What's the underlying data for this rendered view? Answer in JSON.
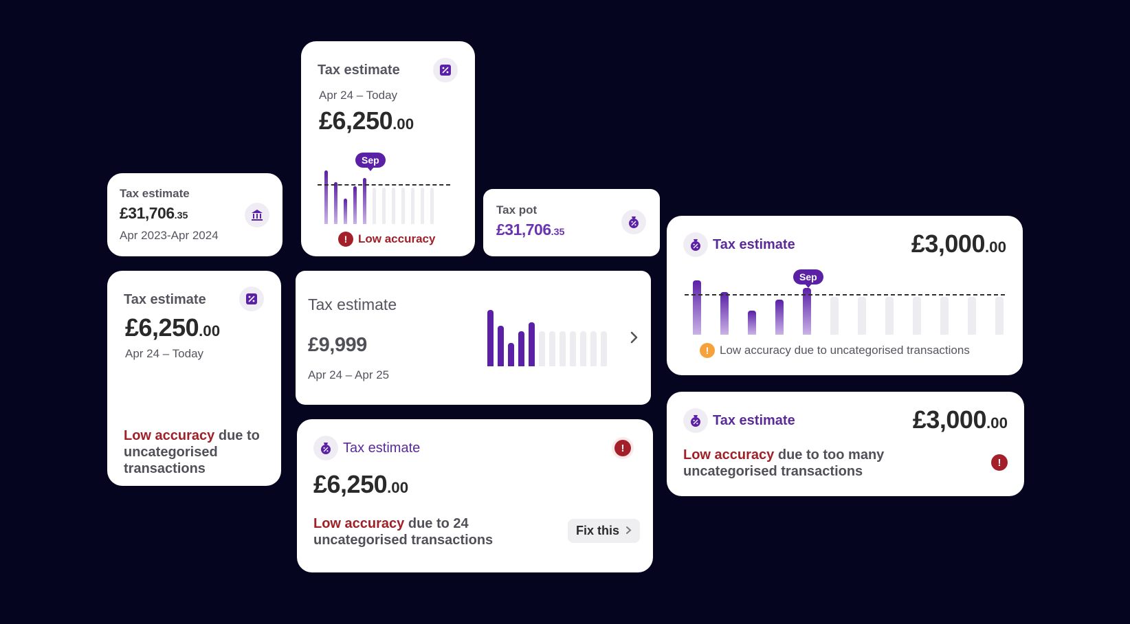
{
  "c1": {
    "title": "Tax estimate",
    "amount_main": "£31,706",
    "amount_dec": ".35",
    "period": "Apr 2023-Apr 2024",
    "icon": "bank-icon"
  },
  "c2": {
    "title": "Tax estimate",
    "period": "Apr 24 – Today",
    "amount_main": "£6,250",
    "amount_dec": ".00",
    "tooltip": "Sep",
    "warning": "Low accuracy",
    "warning_icon": "!",
    "chart_data": {
      "type": "bar",
      "values": [
        1,
        0.78,
        0.47,
        0.7,
        0.86,
        0.68,
        0.68,
        0.68,
        0.68,
        0.68,
        0.68,
        0.68
      ],
      "active_count": 5,
      "highlight": "Sep"
    }
  },
  "c3": {
    "title": "Tax pot",
    "amount_main": "£31,706",
    "amount_dec": ".35",
    "icon": "tax-pot-icon"
  },
  "c4": {
    "title": "Tax estimate",
    "amount_main": "£6,250",
    "amount_dec": ".00",
    "period": "Apr 24 – Today",
    "warn_red": "Low accuracy",
    "warn_rest": " due to uncategorised transactions"
  },
  "c5": {
    "title": "Tax estimate",
    "amount": "£9,999",
    "period": "Apr 24 – Apr 25",
    "chart_data": {
      "type": "bar",
      "values": [
        1,
        0.72,
        0.42,
        0.62,
        0.78,
        0.62,
        0.62,
        0.62,
        0.62,
        0.62,
        0.62,
        0.62
      ],
      "active_count": 5
    }
  },
  "c6": {
    "title": "Tax estimate",
    "amount_main": "£3,000",
    "amount_dec": ".00",
    "tooltip": "Sep",
    "warning": "Low accuracy due to uncategorised transactions",
    "warning_icon": "!",
    "chart_data": {
      "type": "bar",
      "values": [
        1,
        0.78,
        0.44,
        0.65,
        0.86,
        0.7,
        0.7,
        0.7,
        0.7,
        0.7,
        0.7,
        0.7
      ],
      "active_count": 5,
      "highlight": "Sep"
    }
  },
  "c7": {
    "title": "Tax estimate",
    "amount_main": "£6,250",
    "amount_dec": ".00",
    "warn_red": "Low accuracy",
    "warn_rest": " due to 24 uncategorised transactions",
    "fix_label": "Fix this",
    "warning_icon": "!"
  },
  "c8": {
    "title": "Tax estimate",
    "amount_main": "£3,000",
    "amount_dec": ".00",
    "warn_red": "Low accuracy",
    "warn_rest": " due to too many uncategorised transactions",
    "warning_icon": "!"
  },
  "colors": {
    "background": "#050520",
    "accent": "#5a20a6",
    "warning_red": "#a02027",
    "warning_orange": "#f6a13b"
  }
}
